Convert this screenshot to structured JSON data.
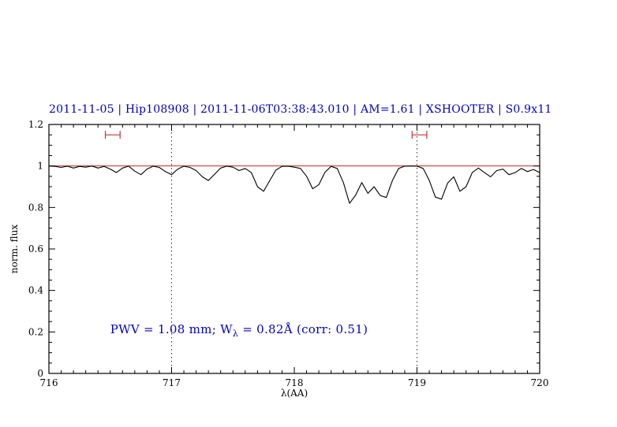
{
  "page": {
    "background": "#ffffff"
  },
  "chart_data": {
    "type": "line",
    "title": "2011-11-05 | Hip108908 | 2011-11-06T03:38:43.010 | AM=1.61 | XSHOOTER | S0.9x11",
    "title_color": "#0000cd",
    "xlabel": "λ(AA)",
    "ylabel": "norm. flux",
    "xlim": [
      716,
      720
    ],
    "ylim": [
      0,
      1.2
    ],
    "x_ticks": [
      716,
      717,
      718,
      719,
      720
    ],
    "x_tick_labels": [
      "716",
      "717",
      "718",
      "719",
      "720"
    ],
    "y_ticks": [
      0,
      0.2,
      0.4,
      0.6,
      0.8,
      1,
      1.2
    ],
    "y_tick_labels": [
      "0",
      "0.2",
      "0.4",
      "0.6",
      "0.8",
      "1",
      "1.2"
    ],
    "x_minor_step": 0.1,
    "y_minor_step": 0.05,
    "grid": "off",
    "legend": "none",
    "reference_line": {
      "y": 1.0,
      "color": "#cc2222"
    },
    "dotted_vlines": {
      "x": [
        717,
        719
      ],
      "color": "#333333",
      "style": "dotted"
    },
    "range_markers": [
      {
        "x_start": 716.46,
        "x_end": 716.58,
        "y": 1.15,
        "color": "#cc3333"
      },
      {
        "x_start": 718.96,
        "x_end": 719.08,
        "y": 1.15,
        "color": "#cc3333"
      }
    ],
    "annotation": {
      "text": "PWV = 1.08 mm; W_λ = 0.82Å (corr: 0.51)",
      "pre": "PWV  =  1.08  mm; W",
      "sub": "λ",
      "post": "  =  0.82Å  (corr: 0.51)",
      "x": 716.5,
      "y": 0.2,
      "color": "#0000cd"
    },
    "series": [
      {
        "name": "spectrum",
        "color": "#000000",
        "x": [
          716.0,
          716.05,
          716.1,
          716.15,
          716.2,
          716.25,
          716.3,
          716.35,
          716.4,
          716.45,
          716.5,
          716.55,
          716.6,
          716.65,
          716.7,
          716.75,
          716.8,
          716.85,
          716.9,
          716.95,
          717.0,
          717.05,
          717.1,
          717.15,
          717.2,
          717.25,
          717.3,
          717.35,
          717.4,
          717.45,
          717.5,
          717.55,
          717.6,
          717.65,
          717.7,
          717.75,
          717.8,
          717.85,
          717.9,
          717.95,
          718.0,
          718.05,
          718.1,
          718.15,
          718.2,
          718.25,
          718.3,
          718.35,
          718.4,
          718.45,
          718.5,
          718.55,
          718.6,
          718.65,
          718.7,
          718.75,
          718.8,
          718.85,
          718.9,
          718.95,
          719.0,
          719.05,
          719.1,
          719.15,
          719.2,
          719.25,
          719.3,
          719.35,
          719.4,
          719.45,
          719.5,
          719.55,
          719.6,
          719.65,
          719.7,
          719.75,
          719.8,
          719.85,
          719.9,
          719.95,
          720.0
        ],
        "y": [
          1.0,
          0.998,
          0.993,
          0.999,
          0.99,
          0.998,
          0.994,
          1.0,
          0.99,
          0.998,
          0.985,
          0.968,
          0.99,
          0.999,
          0.975,
          0.958,
          0.985,
          0.999,
          0.993,
          0.973,
          0.958,
          0.985,
          0.999,
          0.993,
          0.978,
          0.948,
          0.93,
          0.96,
          0.99,
          0.999,
          0.994,
          0.978,
          0.988,
          0.968,
          0.9,
          0.878,
          0.93,
          0.98,
          0.998,
          0.999,
          0.994,
          0.988,
          0.95,
          0.89,
          0.91,
          0.97,
          0.998,
          0.988,
          0.92,
          0.82,
          0.86,
          0.92,
          0.868,
          0.9,
          0.858,
          0.848,
          0.93,
          0.988,
          0.999,
          1.0,
          0.999,
          0.988,
          0.93,
          0.85,
          0.84,
          0.918,
          0.948,
          0.878,
          0.9,
          0.968,
          0.99,
          0.968,
          0.948,
          0.978,
          0.985,
          0.958,
          0.968,
          0.988,
          0.973,
          0.983,
          0.968
        ]
      }
    ]
  }
}
